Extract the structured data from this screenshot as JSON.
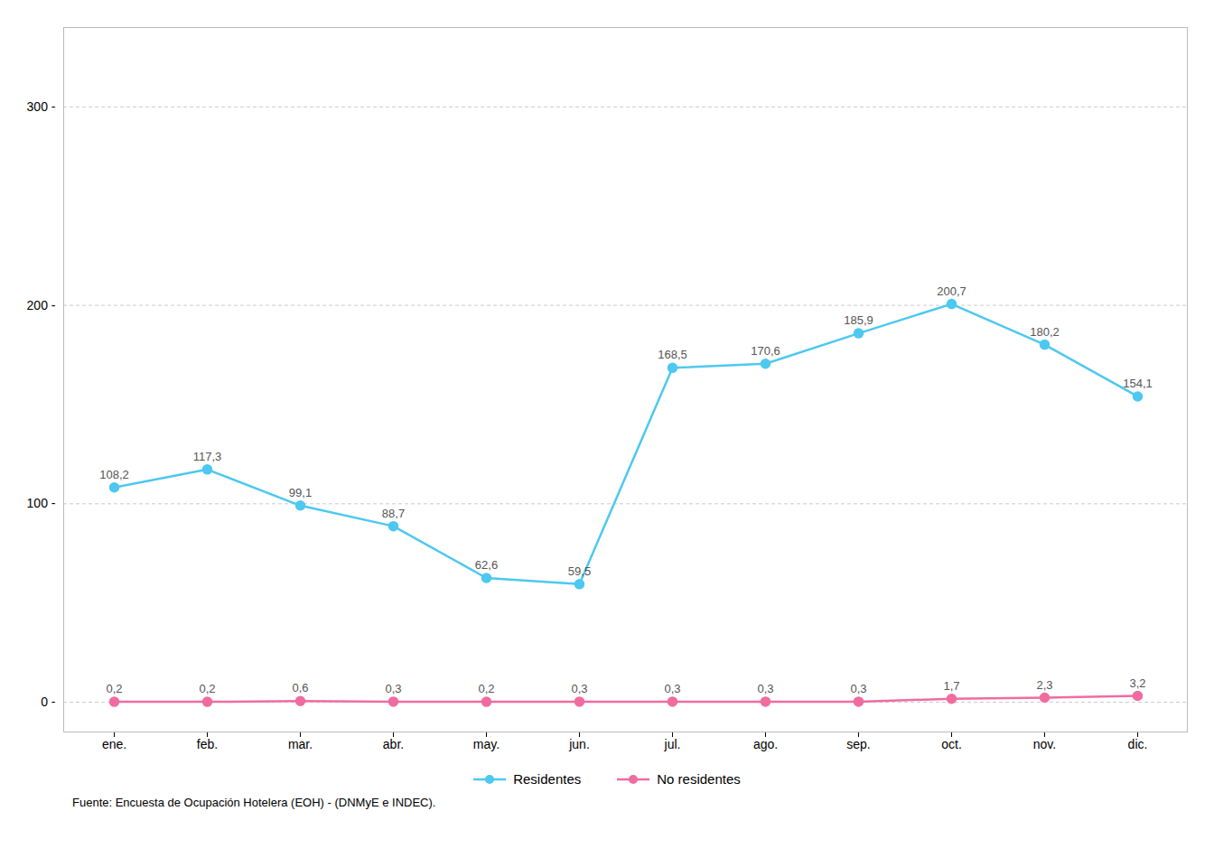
{
  "chart_data": {
    "type": "line",
    "categories": [
      "ene.",
      "feb.",
      "mar.",
      "abr.",
      "may.",
      "jun.",
      "jul.",
      "ago.",
      "sep.",
      "oct.",
      "nov.",
      "dic."
    ],
    "series": [
      {
        "name": "Residentes",
        "color": "#4DC8F0",
        "marker": "circle",
        "values": [
          108.2,
          117.3,
          99.1,
          88.7,
          62.6,
          59.5,
          168.5,
          170.6,
          185.9,
          200.7,
          180.2,
          154.1
        ],
        "value_labels": [
          "108,2",
          "117,3",
          "99,1",
          "88,7",
          "62,6",
          "59,5",
          "168,5",
          "170,6",
          "185,9",
          "200,7",
          "180,2",
          "154,1"
        ]
      },
      {
        "name": "No residentes",
        "color": "#F06CA0",
        "marker": "circle",
        "values": [
          0.2,
          0.2,
          0.6,
          0.3,
          0.2,
          0.3,
          0.3,
          0.3,
          0.3,
          1.7,
          2.3,
          3.2
        ],
        "value_labels": [
          "0,2",
          "0,2",
          "0,6",
          "0,3",
          "0,2",
          "0,3",
          "0,3",
          "0,3",
          "0,3",
          "1,7",
          "2,3",
          "3,2"
        ]
      }
    ],
    "ylim": [
      -15,
      340
    ],
    "yticks": [
      {
        "value": 0,
        "label": "0 -"
      },
      {
        "value": 100,
        "label": "100 -"
      },
      {
        "value": 200,
        "label": "200 -"
      },
      {
        "value": 300,
        "label": "300 -"
      }
    ],
    "grid": true,
    "legend": "bottom",
    "data_labels": true,
    "caption": "Fuente: Encuesta de Ocupación Hotelera (EOH) - (DNMyE e INDEC)."
  }
}
